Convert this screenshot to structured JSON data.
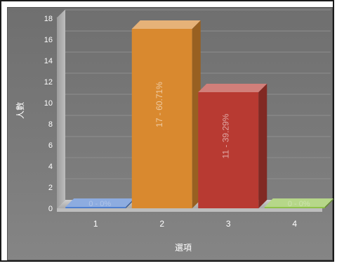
{
  "chart_data": {
    "type": "bar",
    "categories": [
      "1",
      "2",
      "3",
      "4"
    ],
    "values": [
      0,
      17,
      11,
      0
    ],
    "labels": [
      "0 - 0%",
      "17 - 60.71%",
      "11 - 39.29%",
      "0 - 0%"
    ],
    "colors": [
      "#4f7fcf",
      "#d9892f",
      "#b83a32",
      "#8fc24a"
    ],
    "xlabel": "選項",
    "ylabel": "人數",
    "ylim": [
      0,
      18
    ],
    "yticks": [
      "0",
      "2",
      "4",
      "6",
      "8",
      "10",
      "12",
      "14",
      "16",
      "18"
    ],
    "grid": true
  }
}
